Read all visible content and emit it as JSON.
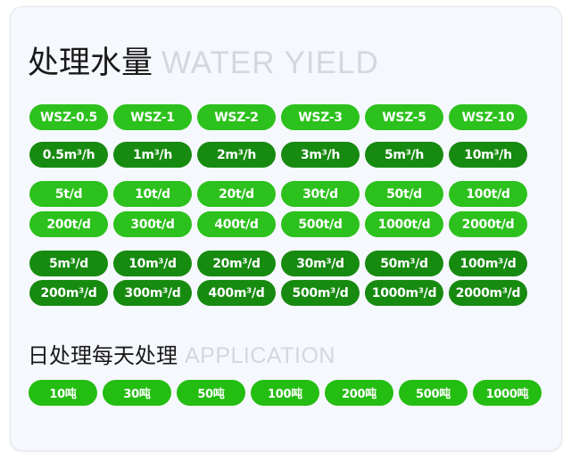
{
  "title": {
    "cn": "处理水量",
    "en": "WATER YIELD"
  },
  "models": [
    "WSZ-0.5",
    "WSZ-1",
    "WSZ-2",
    "WSZ-3",
    "WSZ-5",
    "WSZ-10"
  ],
  "hourly": [
    "0.5m³/h",
    "1m³/h",
    "2m³/h",
    "3m³/h",
    "5m³/h",
    "10m³/h"
  ],
  "tons_a": [
    "5t/d",
    "10t/d",
    "20t/d",
    "30t/d",
    "50t/d",
    "100t/d"
  ],
  "tons_b": [
    "200t/d",
    "300t/d",
    "400t/d",
    "500t/d",
    "1000t/d",
    "2000t/d"
  ],
  "cubic_a": [
    "5m³/d",
    "10m³/d",
    "20m³/d",
    "30m³/d",
    "50m³/d",
    "100m³/d"
  ],
  "cubic_b": [
    "200m³/d",
    "300m³/d",
    "400m³/d",
    "500m³/d",
    "1000m³/d",
    "2000m³/d"
  ],
  "application": {
    "cn": "日处理每天处理",
    "en": "APPLICATION",
    "items": [
      "10吨",
      "30吨",
      "50吨",
      "100吨",
      "200吨",
      "500吨",
      "1000吨"
    ]
  },
  "colors": {
    "light_green": "#2cc11c",
    "dark_green": "#178a10",
    "app_green": "#24bd12"
  }
}
